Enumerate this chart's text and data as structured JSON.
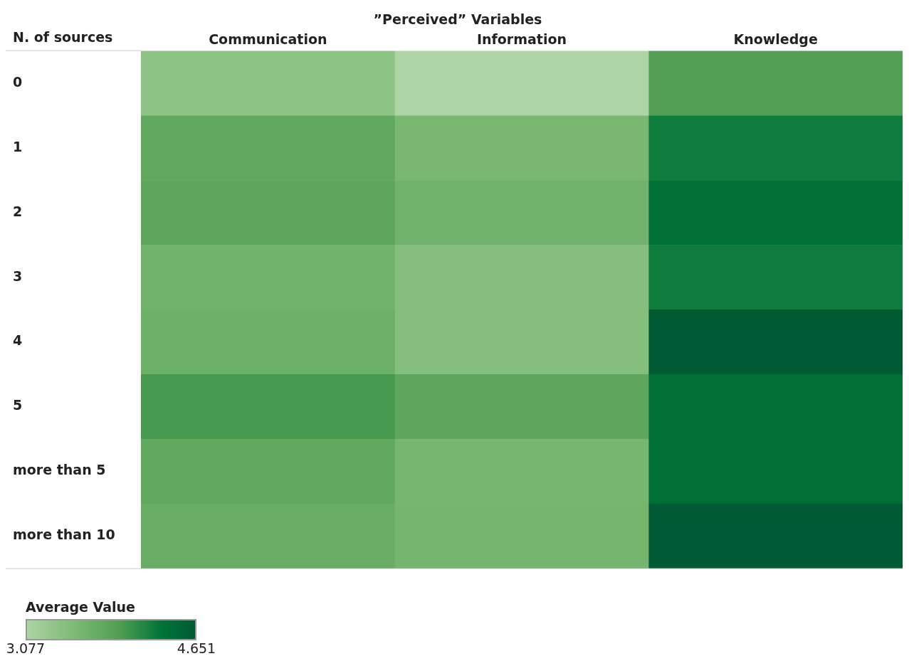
{
  "chart_data": {
    "type": "heatmap",
    "title": "”Perceived” Variables",
    "ylabel": "N. of sources",
    "clabel": "Average Value",
    "categories": [
      "Communication",
      "Information",
      "Knowledge"
    ],
    "y_categories": [
      "0",
      "1",
      "2",
      "3",
      "4",
      "5",
      "more than 5",
      "more than 10"
    ],
    "cells": [
      [
        3.36,
        3.08,
        3.91
      ],
      [
        3.79,
        3.55,
        4.26
      ],
      [
        3.83,
        3.64,
        4.38
      ],
      [
        3.63,
        3.45,
        4.26
      ],
      [
        3.68,
        3.45,
        4.65
      ],
      [
        3.99,
        3.82,
        4.38
      ],
      [
        3.79,
        3.58,
        4.38
      ],
      [
        3.71,
        3.6,
        4.65
      ]
    ],
    "clim": [
      3.077,
      4.651
    ],
    "cticks": [
      3.077,
      4.651
    ]
  }
}
